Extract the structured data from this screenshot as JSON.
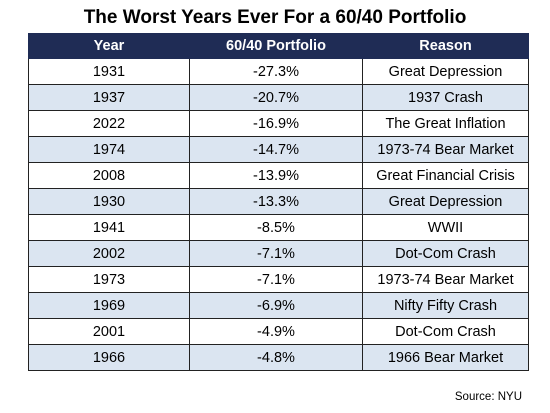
{
  "title": "The Worst Years Ever For a 60/40 Portfolio",
  "source": "Source: NYU",
  "colors": {
    "header_bg": "#1f2c55",
    "header_text": "#ffffff",
    "alt_row_bg": "#dbe5f1",
    "row_bg": "#ffffff"
  },
  "chart_data": {
    "type": "table",
    "title": "The Worst Years Ever For a 60/40 Portfolio",
    "columns": [
      "Year",
      "60/40 Portfolio",
      "Reason"
    ],
    "rows": [
      [
        "1931",
        "-27.3%",
        "Great Depression"
      ],
      [
        "1937",
        "-20.7%",
        "1937 Crash"
      ],
      [
        "2022",
        "-16.9%",
        "The Great Inflation"
      ],
      [
        "1974",
        "-14.7%",
        "1973-74 Bear Market"
      ],
      [
        "2008",
        "-13.9%",
        "Great Financial Crisis"
      ],
      [
        "1930",
        "-13.3%",
        "Great Depression"
      ],
      [
        "1941",
        "-8.5%",
        "WWII"
      ],
      [
        "2002",
        "-7.1%",
        "Dot-Com Crash"
      ],
      [
        "1973",
        "-7.1%",
        "1973-74 Bear Market"
      ],
      [
        "1969",
        "-6.9%",
        "Nifty Fifty Crash"
      ],
      [
        "2001",
        "-4.9%",
        "Dot-Com Crash"
      ],
      [
        "1966",
        "-4.8%",
        "1966 Bear Market"
      ]
    ]
  }
}
